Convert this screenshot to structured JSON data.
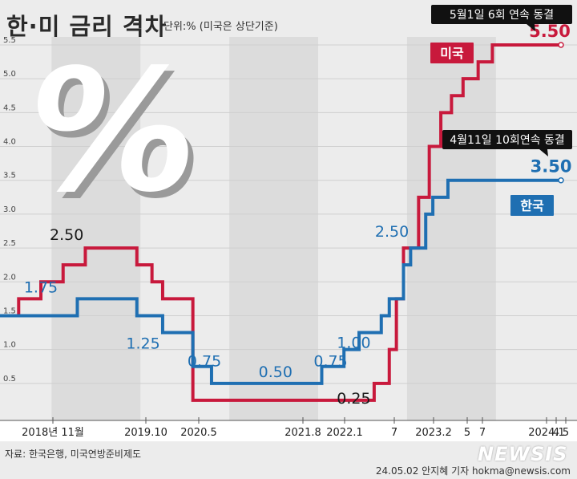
{
  "header": {
    "title": "한·미 금리 격차",
    "unit": "단위:% (미국은 상단기준)"
  },
  "footer": {
    "source": "자료: 한국은행, 미국연방준비제도",
    "credit": "24.05.02 안지혜 기자 hokma@newsis.com",
    "brand": "NEWSIS"
  },
  "decoration": {
    "percent_symbol": "%"
  },
  "chart_data": {
    "type": "line",
    "step": true,
    "ylim": [
      0,
      5.5
    ],
    "y_ticks": [
      "0.5",
      "1.0",
      "1.5",
      "2.0",
      "2.5",
      "3.0",
      "3.5",
      "4.0",
      "4.5",
      "5.0",
      "5.5"
    ],
    "y_tick_values": [
      0.5,
      1.0,
      1.5,
      2.0,
      2.5,
      3.0,
      3.5,
      4.0,
      4.5,
      5.0,
      5.5
    ],
    "x_labels": [
      "2018년 11월",
      "2019.10",
      "2020.5",
      "2021.8",
      "2022.1",
      "7",
      "2023.2",
      "5",
      "7",
      "2024.1",
      "4",
      "5"
    ],
    "series": [
      {
        "name": "미국",
        "color": "#c8193c",
        "points": [
          [
            2018.0,
            1.5
          ],
          [
            2018.21,
            1.75
          ],
          [
            2018.46,
            2.0
          ],
          [
            2018.71,
            2.25
          ],
          [
            2018.96,
            2.5
          ],
          [
            2019.54,
            2.25
          ],
          [
            2019.71,
            2.0
          ],
          [
            2019.83,
            1.75
          ],
          [
            2020.17,
            0.25
          ],
          [
            2022.21,
            0.5
          ],
          [
            2022.38,
            1.0
          ],
          [
            2022.46,
            1.75
          ],
          [
            2022.54,
            2.5
          ],
          [
            2022.71,
            3.25
          ],
          [
            2022.83,
            4.0
          ],
          [
            2022.96,
            4.5
          ],
          [
            2023.08,
            4.75
          ],
          [
            2023.21,
            5.0
          ],
          [
            2023.38,
            5.25
          ],
          [
            2023.54,
            5.5
          ],
          [
            2024.33,
            5.5
          ]
        ],
        "value_labels": [
          {
            "text": "2.50"
          },
          {
            "text": "0.25"
          },
          {
            "text": "5.50"
          }
        ],
        "tag": "미국"
      },
      {
        "name": "한국",
        "color": "#1f6fb2",
        "points": [
          [
            2018.0,
            1.5
          ],
          [
            2018.87,
            1.75
          ],
          [
            2019.54,
            1.5
          ],
          [
            2019.83,
            1.25
          ],
          [
            2020.17,
            0.75
          ],
          [
            2020.38,
            0.5
          ],
          [
            2021.62,
            0.75
          ],
          [
            2021.87,
            1.0
          ],
          [
            2022.04,
            1.25
          ],
          [
            2022.29,
            1.5
          ],
          [
            2022.38,
            1.75
          ],
          [
            2022.54,
            2.25
          ],
          [
            2022.62,
            2.5
          ],
          [
            2022.79,
            3.0
          ],
          [
            2022.87,
            3.25
          ],
          [
            2023.04,
            3.5
          ],
          [
            2024.33,
            3.5
          ]
        ],
        "value_labels": [
          {
            "text": "1.75"
          },
          {
            "text": "1.25"
          },
          {
            "text": "0.75"
          },
          {
            "text": "0.50"
          },
          {
            "text": "0.75"
          },
          {
            "text": "1.00"
          },
          {
            "text": "2.50"
          },
          {
            "text": "3.50"
          }
        ],
        "tag": "한국"
      }
    ],
    "annotations": [
      {
        "text": "5월1일 6회 연속 동결"
      },
      {
        "text": "4월11일 10회연속 동결"
      }
    ]
  }
}
